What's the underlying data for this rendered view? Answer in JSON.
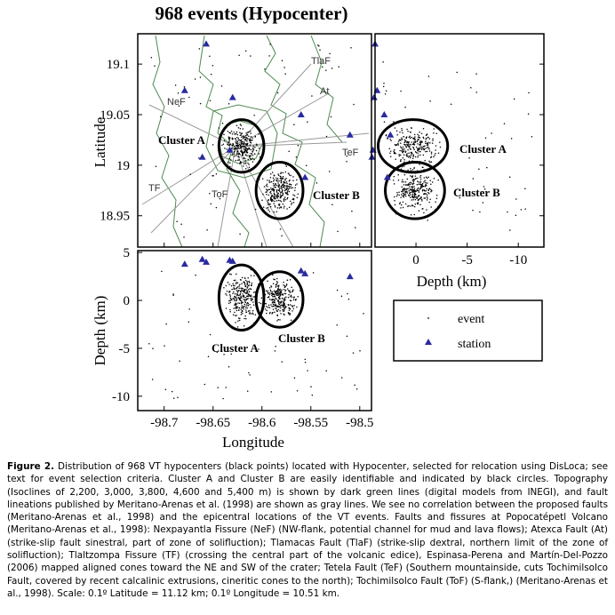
{
  "figure": {
    "title": "968 events (Hypocenter)",
    "lon_label": "Longitude",
    "lat_label": "Latitude",
    "depth_label": "Depth (km)",
    "lonlim": [
      -98.727,
      -98.488
    ],
    "latlim": [
      18.919,
      19.13
    ],
    "depth_xlim": [
      4.0,
      -12.5
    ],
    "depth_ylim": [
      5.2,
      -11.5
    ],
    "lonticks": [
      -98.7,
      -98.65,
      -98.6,
      -98.55,
      -98.5
    ],
    "latticks": [
      18.95,
      19,
      19.05,
      19.1
    ],
    "depth_xticks": [
      0,
      -5,
      -10
    ],
    "depth_yticks": [
      5,
      0,
      -5,
      -10
    ],
    "clusters": [
      {
        "name": "Cluster A",
        "lon": -98.621,
        "lat": 19.019,
        "depth": 0.3,
        "lon_radius": 0.023,
        "lat_radius": 0.026,
        "depth_radius": 3.4
      },
      {
        "name": "Cluster B",
        "lon": -98.582,
        "lat": 18.975,
        "depth": 0.1,
        "lon_radius": 0.024,
        "lat_radius": 0.028,
        "depth_radius": 2.9
      }
    ],
    "stations": [
      {
        "lon": -98.657,
        "lat": 19.12,
        "elev": 4.0
      },
      {
        "lon": -98.679,
        "lat": 19.074,
        "elev": 3.8
      },
      {
        "lon": -98.63,
        "lat": 19.067,
        "elev": 4.1
      },
      {
        "lon": -98.56,
        "lat": 19.05,
        "elev": 3.1
      },
      {
        "lon": -98.661,
        "lat": 19.008,
        "elev": 4.3
      },
      {
        "lon": -98.556,
        "lat": 18.988,
        "elev": 2.8
      },
      {
        "lon": -98.633,
        "lat": 19.015,
        "elev": 4.2
      },
      {
        "lon": -98.51,
        "lat": 19.03,
        "elev": 2.5
      }
    ],
    "fault_labels": [
      "TlaF",
      "At",
      "NeF",
      "TeF",
      "TF",
      "ToF"
    ],
    "legend": [
      "event",
      "station"
    ]
  },
  "caption": {
    "label": "Figure 2.",
    "text": "Distribution of 968 VT hypocenters (black points) located with Hypocenter, selected for relocation using DisLoca; see text for event selection criteria. Cluster A and Cluster B are easily identifiable and indicated by black circles. Topography (Isoclines of 2,200, 3,000, 3,800, 4,600 and 5,400 m) is shown by dark green lines (digital models from INEGI), and fault lineations published by Meritano-Arenas et al. (1998) are shown as gray lines. We see no correlation between the proposed faults (Meritano-Arenas et al., 1998) and the epicentral locations of the VT events. Faults and fissures at Popocatépetl Volcano (Meritano-Arenas et al., 1998): Nexpayantla Fissure (NeF) (NW-flank, potential channel for mud and lava flows); Atexca Fault (At) (strike-slip fault sinestral, part of zone of solifluction); Tlamacas Fault (TlaF) (strike-slip dextral, northern limit of the zone of solifluction); Tlaltzompa Fissure (TF) (crossing the central part of the volcanic edice), Espinasa-Perena and Martín-Del-Pozzo (2006) mapped aligned cones toward the NE and SW of the crater; Tetela Fault (TeF) (Southern mountainside, cuts Tochimilsolco Fault, covered by recent calcalinic extrusions, cineritic cones to the north); Tochimilsolco Fault (ToF) (S-flank,) (Meritano-Arenas et al., 1998). Scale: 0.1º Latitude = 11.12 km; 0.1º Longitude = 10.51 km."
  }
}
